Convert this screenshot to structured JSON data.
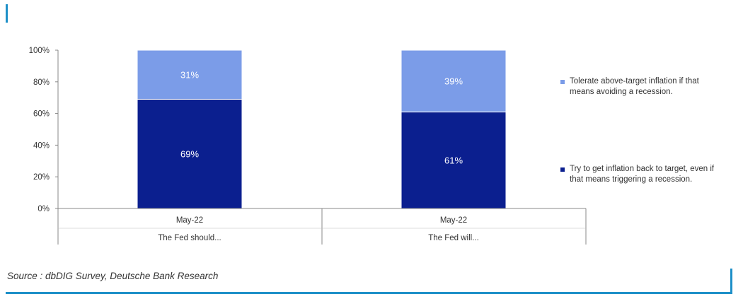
{
  "chart_data": {
    "type": "bar",
    "stacked": true,
    "categories": [
      "May-22",
      "May-22"
    ],
    "groups": [
      "The Fed should...",
      "The Fed will..."
    ],
    "ylim": [
      0,
      100
    ],
    "yticks": [
      "0%",
      "20%",
      "40%",
      "60%",
      "80%",
      "100%"
    ],
    "series": [
      {
        "name": "Try to get inflation back to target, even if that means triggering a recession.",
        "values": [
          69,
          61
        ],
        "labels": [
          "69%",
          "61%"
        ],
        "color": "#0b1f8f"
      },
      {
        "name": "Tolerate above-target inflation if that means avoiding a recession.",
        "values": [
          31,
          39
        ],
        "labels": [
          "31%",
          "39%"
        ],
        "color": "#7b9ce8"
      }
    ],
    "grid": false,
    "legend_position": "right"
  },
  "source": "Source : dbDIG Survey, Deutsche Bank Research",
  "colors": {
    "accent": "#1e90c8",
    "dark_series": "#0b1f8f",
    "light_series": "#7b9ce8"
  }
}
